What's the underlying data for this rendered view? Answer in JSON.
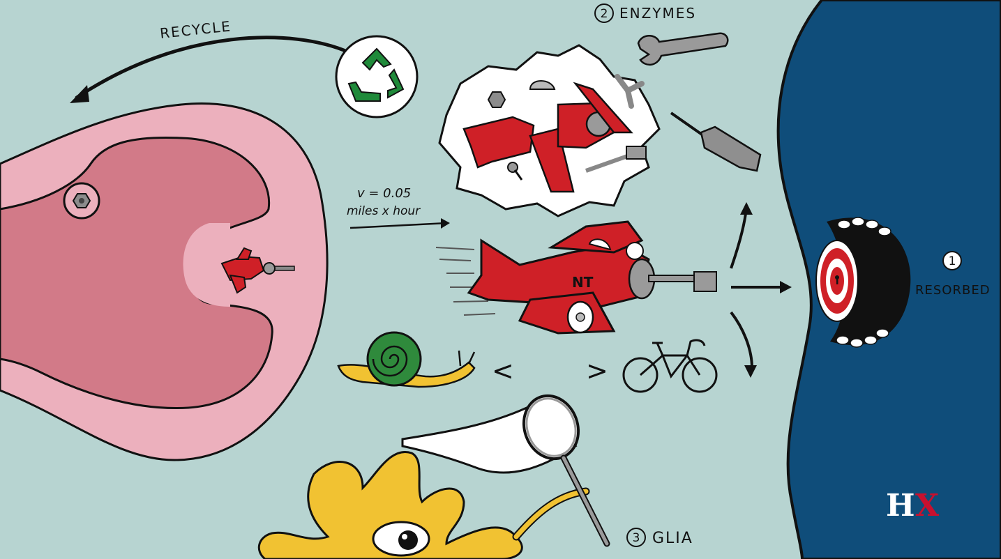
{
  "labels": {
    "recycle": "RECYCLE",
    "enzymes_number": "2",
    "enzymes": "ENZYMES",
    "resorbed_number": "1",
    "resorbed": "RESORBED",
    "glia_number": "3",
    "glia": "GLIA",
    "velocity": "v = 0.05",
    "velocity_units": "miles x hour",
    "plane_tag": "NT",
    "less_than": "<",
    "greater_than": ">",
    "logo_h": "H",
    "logo_x": "X"
  },
  "colors": {
    "background": "#b7d4d1",
    "neuron_outer": "#ecb0bd",
    "neuron_inner": "#d27a88",
    "plane_red": "#cf2027",
    "postsynaptic_blue": "#0f4d7a",
    "recycle_green": "#1f8a3a",
    "glia_yellow": "#f1c232",
    "snail_green": "#2f8a3c",
    "logo_red": "#c8102e",
    "logo_gold": "#c8a043"
  },
  "icons": [
    "recycle-icon",
    "wrench-icon",
    "screwdriver-icon",
    "key-icon",
    "propeller-icon",
    "nut-icon",
    "bolt-icon",
    "target-icon",
    "snail-icon",
    "bicycle-icon",
    "butterfly-net-icon",
    "glia-eye-icon"
  ]
}
